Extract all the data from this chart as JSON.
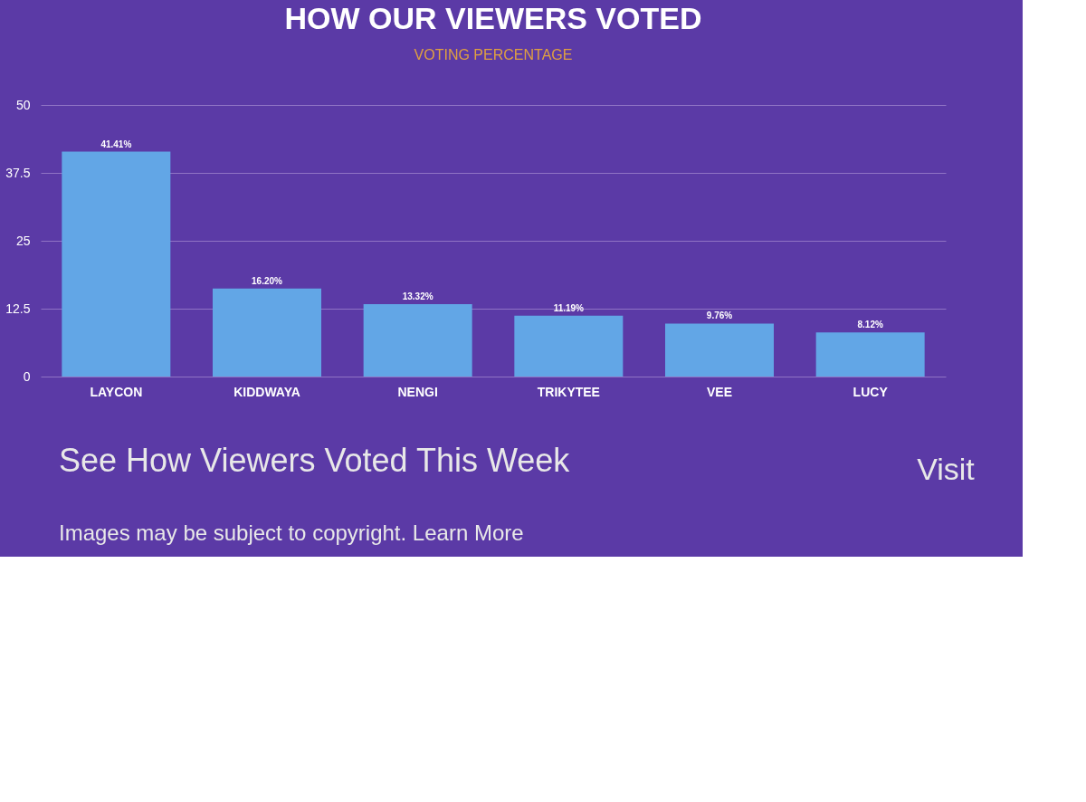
{
  "chart_data": {
    "type": "bar",
    "title": "HOW OUR VIEWERS VOTED",
    "subtitle": "VOTING PERCENTAGE",
    "categories": [
      "LAYCON",
      "KIDDWAYA",
      "NENGI",
      "TRIKYTEE",
      "VEE",
      "LUCY"
    ],
    "values": [
      41.41,
      16.2,
      13.32,
      11.19,
      9.76,
      8.12
    ],
    "value_labels": [
      "41.41%",
      "16.20%",
      "13.32%",
      "11.19%",
      "9.76%",
      "8.12%"
    ],
    "color": "#62a6e6",
    "ylim": [
      0,
      50
    ],
    "yticks": [
      0,
      12.5,
      25,
      37.5,
      50
    ],
    "grid": "y",
    "annotations": [
      "See How Viewers Voted This Week",
      "Visit",
      "Images may be subject to copyright. Learn More"
    ]
  }
}
